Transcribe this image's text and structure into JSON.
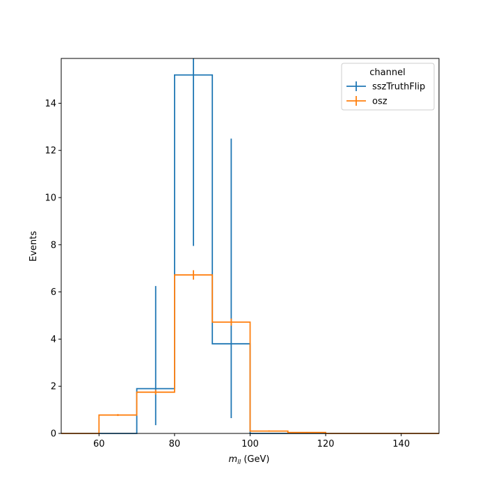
{
  "chart_data": {
    "type": "histogram",
    "xlabel_main": "m",
    "xlabel_sub": "ll",
    "xlabel_unit": "(GeV)",
    "ylabel": "Events",
    "xlim": [
      50,
      150
    ],
    "ylim": [
      0,
      15.9
    ],
    "xticks": [
      60,
      80,
      100,
      120,
      140
    ],
    "yticks": [
      0,
      2,
      4,
      6,
      8,
      10,
      12,
      14
    ],
    "bin_edges": [
      50,
      60,
      70,
      80,
      90,
      100,
      110,
      120,
      130,
      140,
      150
    ],
    "legend": {
      "title": "channel",
      "position": "top-right"
    },
    "series": [
      {
        "name": "sszTruthFlip",
        "color": "#1f77b4",
        "values": [
          0,
          0,
          1.9,
          15.2,
          3.8,
          0,
          0,
          0,
          0,
          0
        ],
        "err_low": [
          0,
          0,
          0.35,
          7.95,
          0.65,
          0,
          0,
          0,
          0,
          0
        ],
        "err_high": [
          0,
          0,
          6.25,
          15.9,
          12.5,
          0,
          0,
          0,
          0,
          0
        ]
      },
      {
        "name": "osz",
        "color": "#ff7f0e",
        "values": [
          0,
          0.78,
          1.75,
          6.72,
          4.72,
          0.1,
          0.04,
          0,
          0,
          0
        ],
        "err_low": [
          0,
          0.74,
          1.65,
          6.52,
          4.57,
          0.07,
          0.02,
          0,
          0,
          0
        ],
        "err_high": [
          0,
          0.82,
          1.85,
          6.92,
          4.87,
          0.13,
          0.06,
          0,
          0,
          0
        ]
      }
    ]
  }
}
